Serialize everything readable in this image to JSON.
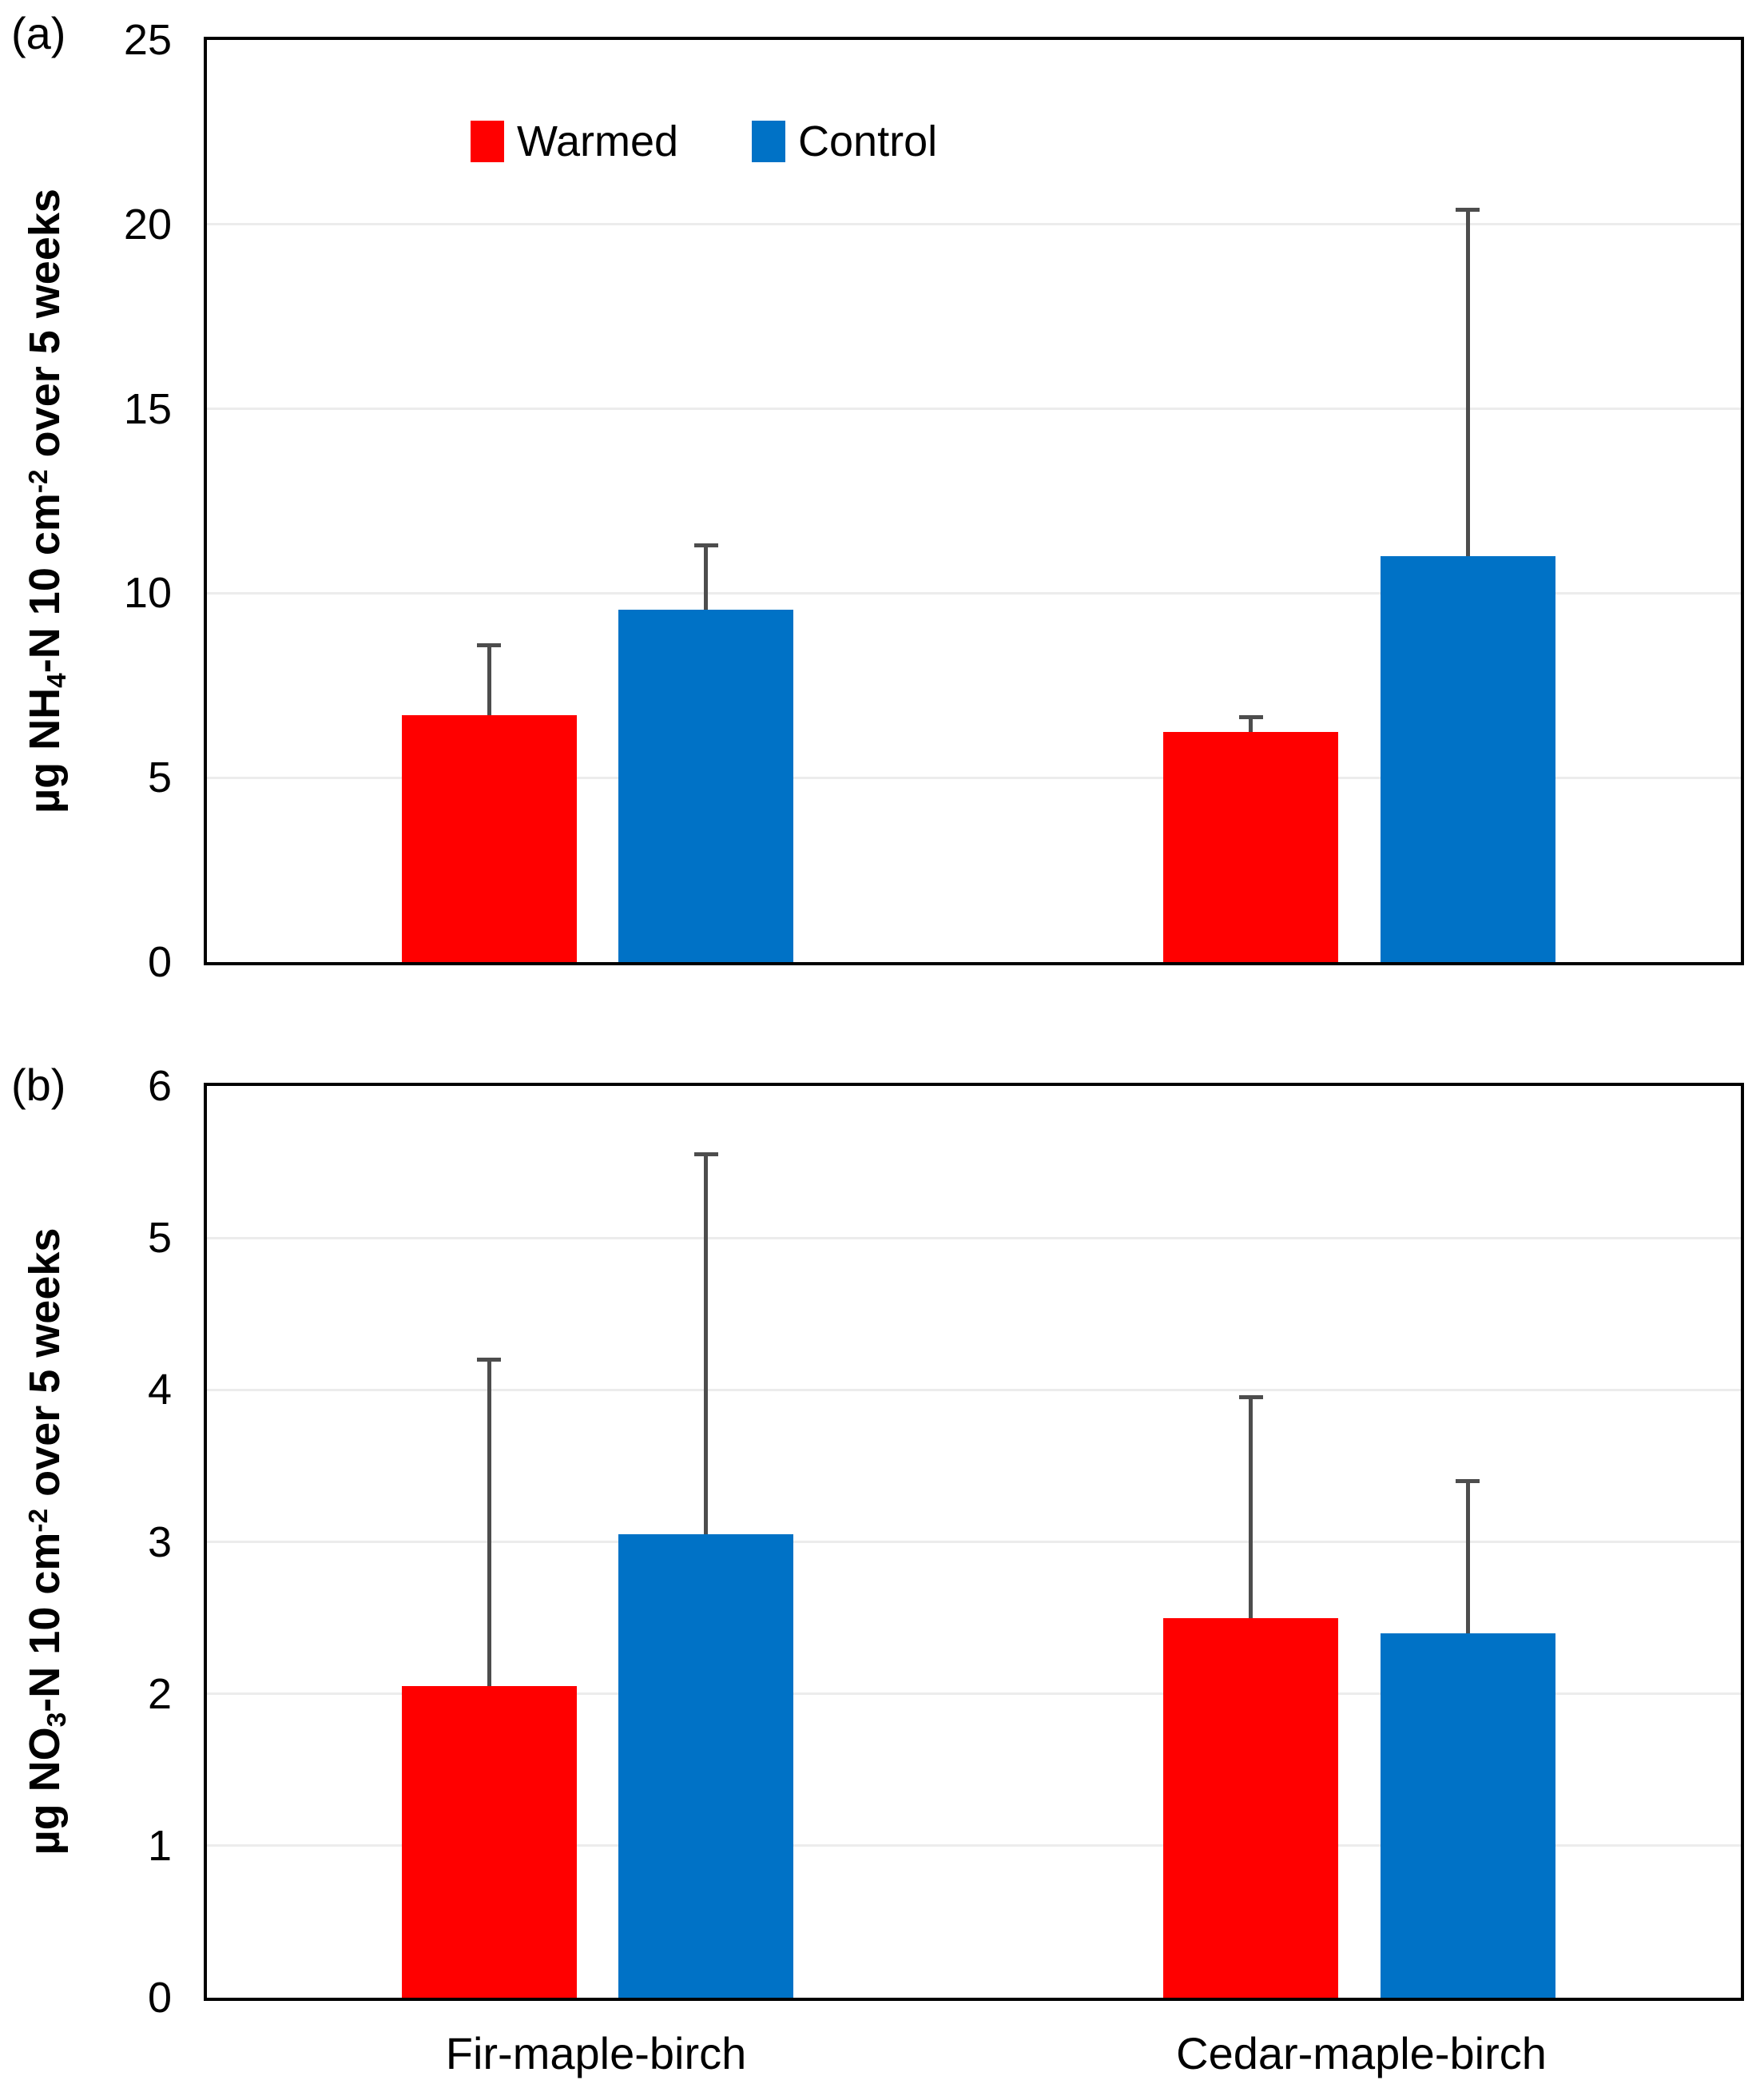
{
  "figure": {
    "background": "#FFFFFF",
    "panel_a_label": "(a)",
    "panel_b_label": "(b)",
    "legend": {
      "position": "top-left-inside-panel-a",
      "items": [
        {
          "label": "Warmed",
          "color": "#FF0000"
        },
        {
          "label": "Control",
          "color": "#0072C6"
        }
      ]
    },
    "colors": {
      "warmed_bar": "#FF0000",
      "control_bar": "#0072C6",
      "error_bar": "#4D4D4D",
      "gridline": "#ECECEC",
      "axis_frame": "#000000"
    }
  },
  "chart_data": [
    {
      "panel": "a",
      "type": "bar",
      "title": "",
      "ylabel": "µg NH₄-N 10 cm⁻² over 5 weeks",
      "ylabel_parts": [
        "µg NH",
        {
          "sub": "4"
        },
        "-N 10 cm",
        {
          "sup": "-2"
        },
        " over 5 weeks"
      ],
      "ylim": [
        0,
        25
      ],
      "yticks": [
        0,
        5,
        10,
        15,
        20,
        25
      ],
      "grid": true,
      "legend_position": "top-left-inside",
      "show_x_labels": false,
      "categories": [
        "Fir-maple-birch",
        "Cedar-maple-birch"
      ],
      "series": [
        {
          "name": "Warmed",
          "color": "#FF0000",
          "values": [
            6.7,
            6.25
          ],
          "errors_up": [
            1.9,
            0.4
          ]
        },
        {
          "name": "Control",
          "color": "#0072C6",
          "values": [
            9.55,
            11.0
          ],
          "errors_up": [
            1.75,
            9.4
          ]
        }
      ]
    },
    {
      "panel": "b",
      "type": "bar",
      "title": "",
      "ylabel": "µg NO₃-N 10 cm⁻² over 5 weeks",
      "ylabel_parts": [
        "µg NO",
        {
          "sub": "3"
        },
        "-N 10 cm",
        {
          "sup": "-2"
        },
        " over 5 weeks"
      ],
      "ylim": [
        0,
        6
      ],
      "yticks": [
        0,
        1,
        2,
        3,
        4,
        5,
        6
      ],
      "grid": true,
      "legend_position": "none",
      "show_x_labels": true,
      "categories": [
        "Fir-maple-birch",
        "Cedar-maple-birch"
      ],
      "series": [
        {
          "name": "Warmed",
          "color": "#FF0000",
          "values": [
            2.05,
            2.5
          ],
          "errors_up": [
            2.15,
            1.45
          ]
        },
        {
          "name": "Control",
          "color": "#0072C6",
          "values": [
            3.05,
            2.4
          ],
          "errors_up": [
            2.5,
            1.0
          ]
        }
      ]
    }
  ]
}
